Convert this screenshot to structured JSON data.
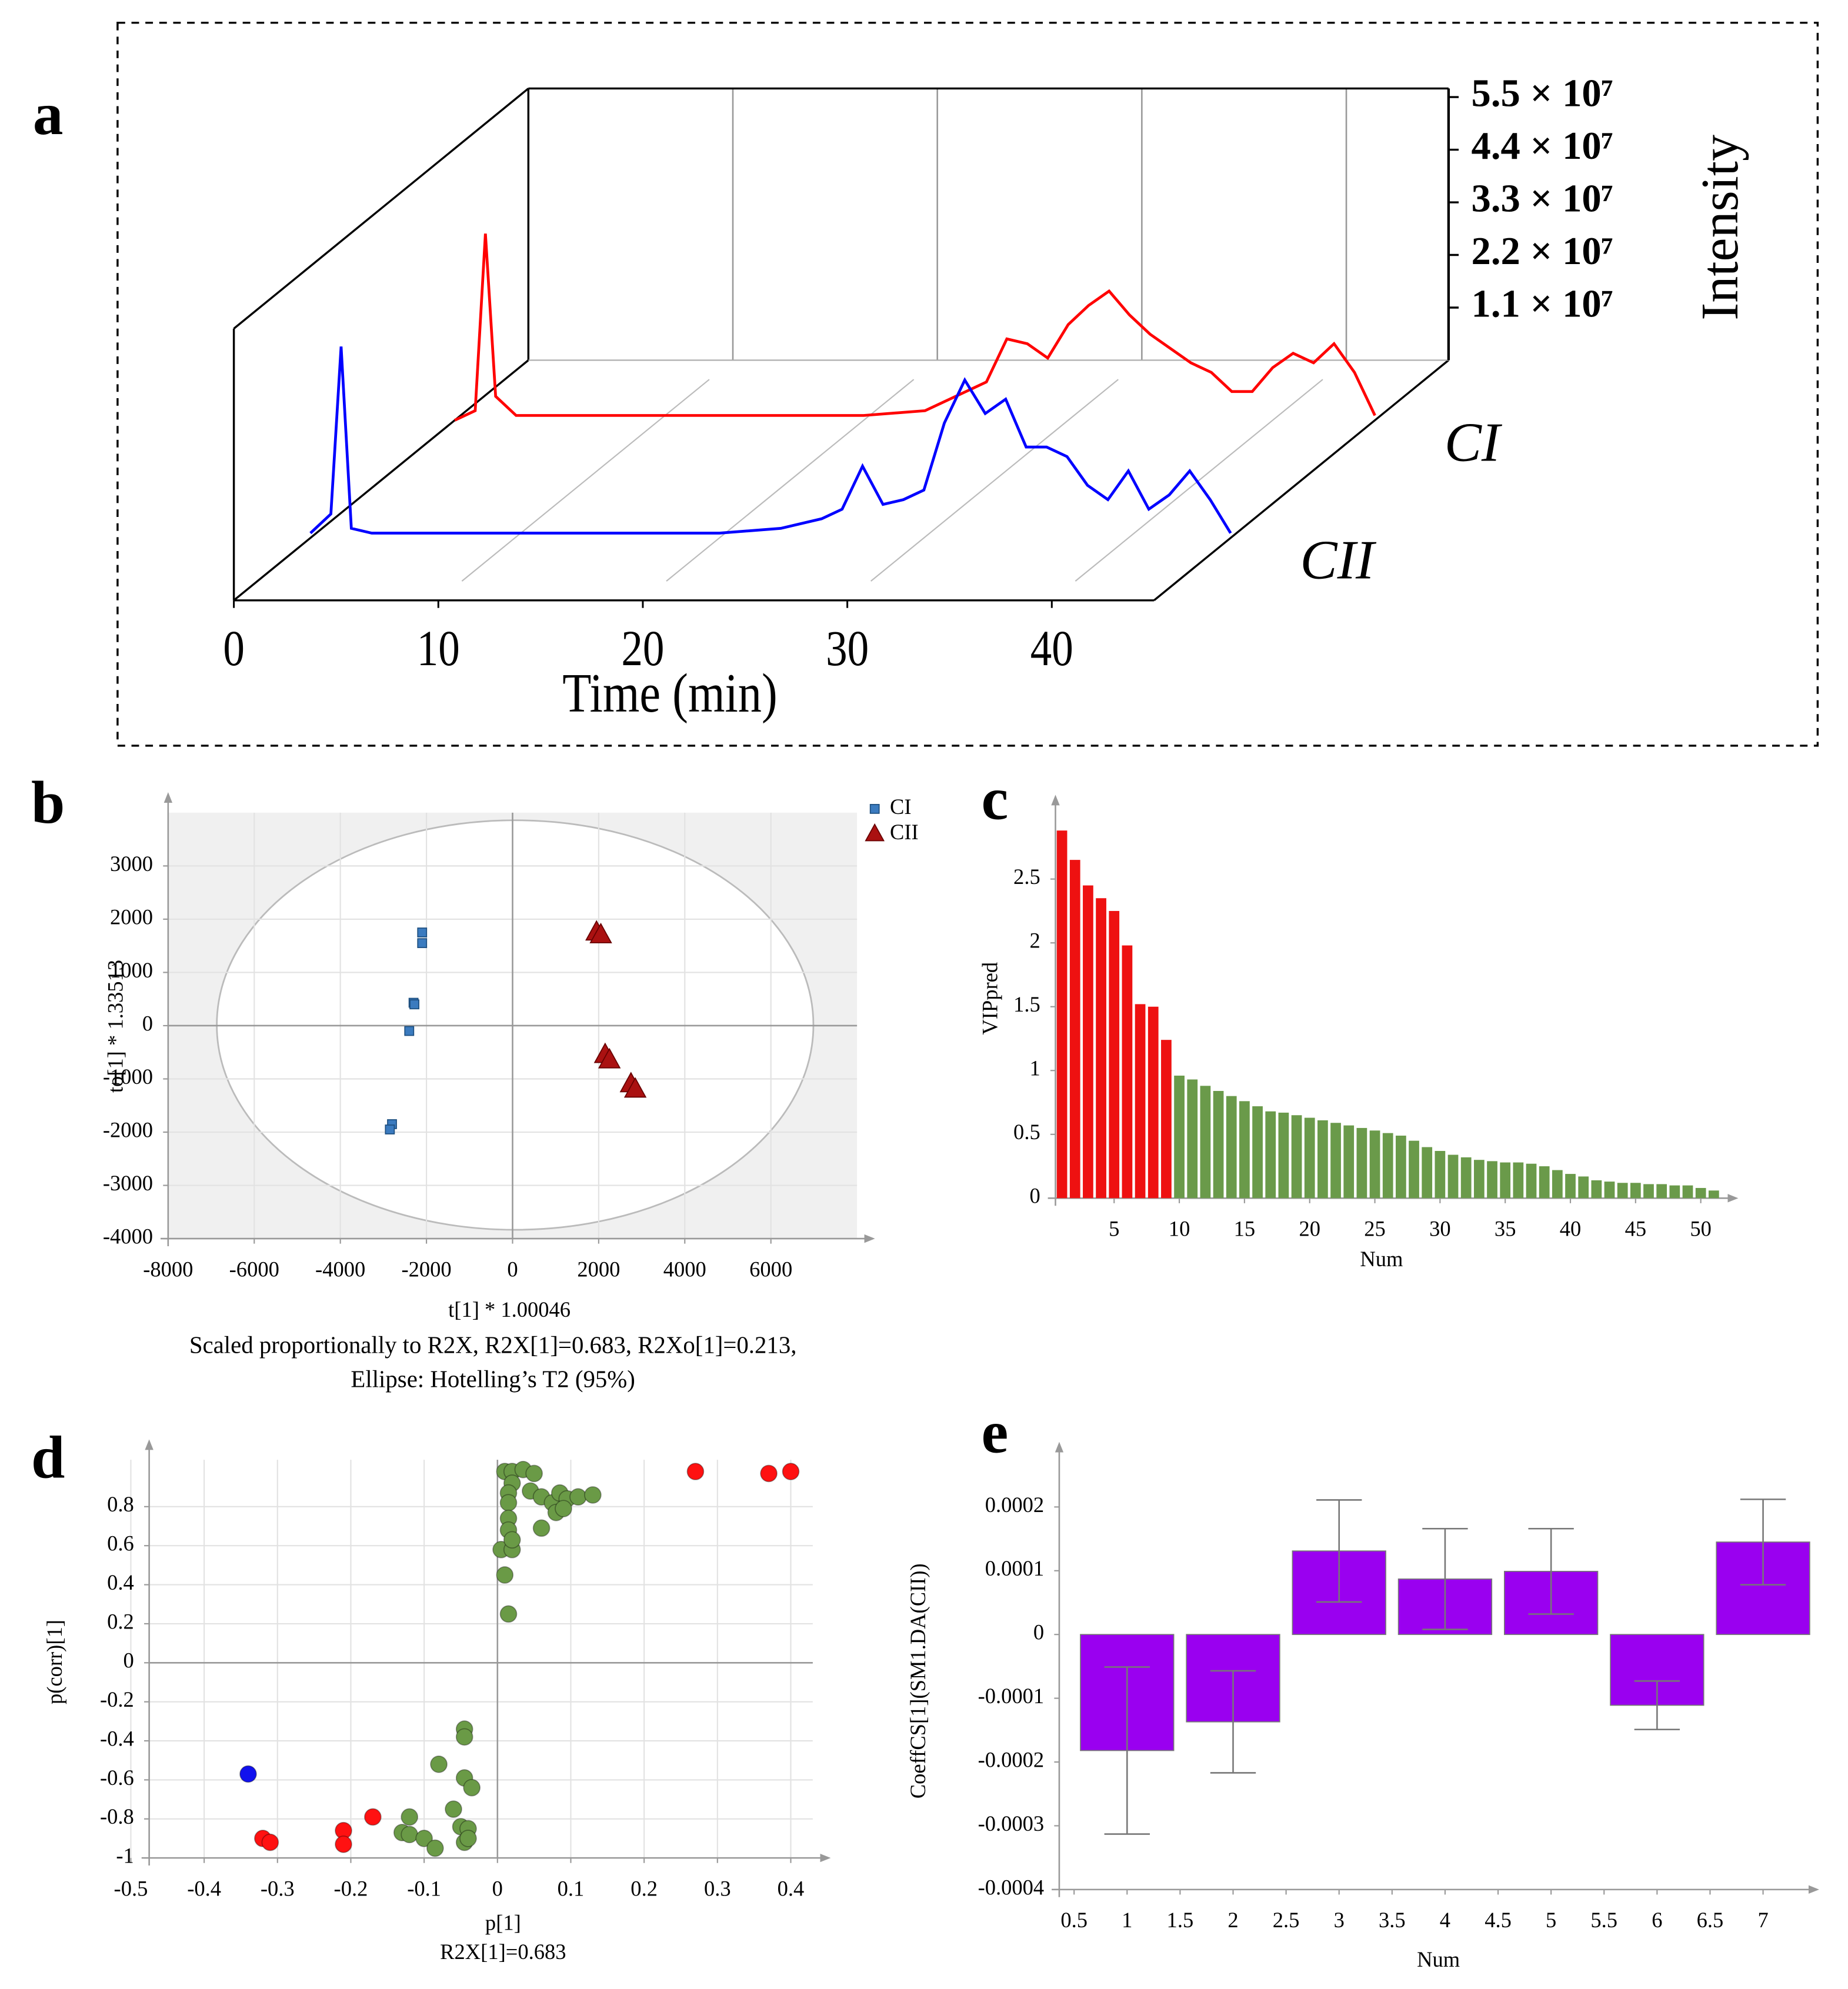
{
  "chart_data": [
    {
      "type": "line",
      "panel_label": "a",
      "x_label": "Time (min)",
      "y_label": "Intensity",
      "x": [
        0,
        1,
        1.5,
        2,
        3,
        5,
        10,
        15,
        20,
        23,
        25,
        26,
        27,
        28,
        29,
        30,
        31,
        32,
        33,
        34,
        35,
        36,
        37,
        38,
        39,
        40,
        41,
        42,
        43,
        44,
        45
      ],
      "series": [
        {
          "name": "CI",
          "color": "#ff0000",
          "values": [
            0,
            2000000,
            39000000,
            5000000,
            1000000,
            1000000,
            1000000,
            1000000,
            1000000,
            2000000,
            6000000,
            8000000,
            17000000,
            16000000,
            13000000,
            20000000,
            24000000,
            27000000,
            22000000,
            18000000,
            15000000,
            12000000,
            10000000,
            6000000,
            6000000,
            11000000,
            14000000,
            12000000,
            16000000,
            10000000,
            1000000
          ]
        },
        {
          "name": "CII",
          "color": "#0000ff",
          "values": [
            1000000,
            5000000,
            40000000,
            2000000,
            1000000,
            1000000,
            1000000,
            1000000,
            1000000,
            2000000,
            4000000,
            6000000,
            15000000,
            7000000,
            8000000,
            10000000,
            24000000,
            33000000,
            26000000,
            29000000,
            19000000,
            19000000,
            17000000,
            11000000,
            8000000,
            14000000,
            6000000,
            9000000,
            14000000,
            8000000,
            1000000
          ]
        }
      ],
      "xlim": [
        0,
        45
      ],
      "xticks": [
        0,
        10,
        20,
        30,
        40
      ],
      "ylim": [
        0,
        56800000
      ],
      "yticks": [
        {
          "value": 11000000,
          "label": "1.1 × 10⁷"
        },
        {
          "value": 22000000,
          "label": "2.2 × 10⁷"
        },
        {
          "value": 33000000,
          "label": "3.3 × 10⁷"
        },
        {
          "value": 44000000,
          "label": "4.4 × 10⁷"
        },
        {
          "value": 55000000,
          "label": "5.5 × 10⁷"
        }
      ]
    },
    {
      "type": "scatter",
      "panel_label": "b",
      "x_label": "t[1] * 1.00046",
      "y_label": "to[1] * 1.33513",
      "caption": [
        "Scaled proportionally to R2X, R2X[1]=0.683, R2Xo[1]=0.213,",
        "Ellipse: Hotelling’s T2 (95%)"
      ],
      "series": [
        {
          "name": "CI",
          "color": "#3b7bbf",
          "marker": "square",
          "x": [
            -2100,
            -2100,
            -2300,
            -2280,
            -2400,
            -2800,
            -2850
          ],
          "values": [
            1750,
            1550,
            430,
            400,
            -100,
            -1850,
            -1950
          ]
        },
        {
          "name": "CII",
          "color": "#aa1111",
          "marker": "triangle",
          "x": [
            1950,
            2050,
            2150,
            2250,
            2750,
            2850
          ],
          "values": [
            1750,
            1700,
            -550,
            -650,
            -1100,
            -1200
          ]
        }
      ],
      "xlim": [
        -8000,
        8000
      ],
      "xticks": [
        -8000,
        -6000,
        -4000,
        -2000,
        0,
        2000,
        4000,
        6000
      ],
      "ylim": [
        -4000,
        4000
      ],
      "yticks": [
        -4000,
        -3000,
        -2000,
        -1000,
        0,
        1000,
        2000,
        3000
      ],
      "grid": true,
      "plot_background": "#f0f0f0",
      "legend": "upper right"
    },
    {
      "type": "bar",
      "panel_label": "c",
      "x_label": "Num",
      "y_label": "VIPpred",
      "x": [
        1,
        2,
        3,
        4,
        5,
        6,
        7,
        8,
        9,
        10,
        11,
        12,
        13,
        14,
        15,
        16,
        17,
        18,
        19,
        20,
        21,
        22,
        23,
        24,
        25,
        26,
        27,
        28,
        29,
        30,
        31,
        32,
        33,
        34,
        35,
        36,
        37,
        38,
        39,
        40,
        41,
        42,
        43,
        44,
        45,
        46,
        47,
        48,
        49,
        50,
        51
      ],
      "values": [
        2.88,
        2.65,
        2.45,
        2.35,
        2.25,
        1.98,
        1.52,
        1.5,
        1.24,
        0.96,
        0.93,
        0.88,
        0.84,
        0.8,
        0.76,
        0.72,
        0.68,
        0.67,
        0.65,
        0.63,
        0.61,
        0.59,
        0.57,
        0.55,
        0.53,
        0.51,
        0.49,
        0.45,
        0.4,
        0.37,
        0.34,
        0.32,
        0.3,
        0.29,
        0.28,
        0.28,
        0.27,
        0.25,
        0.22,
        0.19,
        0.17,
        0.14,
        0.13,
        0.12,
        0.12,
        0.11,
        0.11,
        0.1,
        0.1,
        0.08,
        0.06
      ],
      "colors": [
        "#ee1111",
        "#ee1111",
        "#ee1111",
        "#ee1111",
        "#ee1111",
        "#ee1111",
        "#ee1111",
        "#ee1111",
        "#ee1111",
        "#6a9a4a",
        "#6a9a4a",
        "#6a9a4a",
        "#6a9a4a",
        "#6a9a4a",
        "#6a9a4a",
        "#6a9a4a",
        "#6a9a4a",
        "#6a9a4a",
        "#6a9a4a",
        "#6a9a4a",
        "#6a9a4a",
        "#6a9a4a",
        "#6a9a4a",
        "#6a9a4a",
        "#6a9a4a",
        "#6a9a4a",
        "#6a9a4a",
        "#6a9a4a",
        "#6a9a4a",
        "#6a9a4a",
        "#6a9a4a",
        "#6a9a4a",
        "#6a9a4a",
        "#6a9a4a",
        "#6a9a4a",
        "#6a9a4a",
        "#6a9a4a",
        "#6a9a4a",
        "#6a9a4a",
        "#6a9a4a",
        "#6a9a4a",
        "#6a9a4a",
        "#6a9a4a",
        "#6a9a4a",
        "#6a9a4a",
        "#6a9a4a",
        "#6a9a4a",
        "#6a9a4a",
        "#6a9a4a",
        "#6a9a4a",
        "#6a9a4a"
      ],
      "xlim": [
        0.5,
        51.5
      ],
      "xticks": [
        5,
        10,
        15,
        20,
        25,
        30,
        35,
        40,
        45,
        50
      ],
      "ylim": [
        0,
        3
      ],
      "yticks": [
        0,
        0.5,
        1,
        1.5,
        2,
        2.5
      ]
    },
    {
      "type": "scatter",
      "panel_label": "d",
      "x_label": "p[1]",
      "subtitle": "R2X[1]=0.683",
      "y_label": "p(corr)[1]",
      "series": [
        {
          "color": "#6a9a46",
          "marker": "circle",
          "x": [
            0.01,
            0.02,
            0.035,
            0.05,
            0.02,
            0.045,
            0.06,
            0.075,
            0.085,
            0.095,
            0.11,
            0.13,
            0.08,
            0.06,
            0.015,
            0.015,
            0.015,
            0.015,
            0.005,
            0.02,
            0.01,
            0.015,
            0.02,
            0.09,
            -0.045,
            -0.045,
            -0.08,
            -0.045,
            -0.035,
            -0.06,
            -0.12,
            -0.13,
            -0.12,
            -0.1,
            -0.085,
            -0.05,
            -0.04,
            -0.045,
            -0.04
          ],
          "values": [
            0.98,
            0.98,
            0.99,
            0.97,
            0.92,
            0.88,
            0.85,
            0.82,
            0.87,
            0.84,
            0.85,
            0.86,
            0.77,
            0.69,
            0.87,
            0.82,
            0.74,
            0.68,
            0.58,
            0.58,
            0.45,
            0.25,
            0.63,
            0.79,
            -0.34,
            -0.38,
            -0.52,
            -0.59,
            -0.64,
            -0.75,
            -0.79,
            -0.87,
            -0.88,
            -0.9,
            -0.95,
            -0.84,
            -0.85,
            -0.92,
            -0.9
          ]
        },
        {
          "color": "#ff1111",
          "marker": "circle",
          "x": [
            -0.32,
            -0.31,
            -0.21,
            -0.21,
            -0.17,
            0.27,
            0.37,
            0.4
          ],
          "values": [
            -0.9,
            -0.92,
            -0.86,
            -0.93,
            -0.79,
            0.98,
            0.97,
            0.98
          ]
        },
        {
          "color": "#1111ee",
          "marker": "circle",
          "x": [
            -0.34
          ],
          "values": [
            -0.57
          ]
        }
      ],
      "xlim": [
        -0.475,
        0.43
      ],
      "xticks": [
        -0.5,
        -0.4,
        -0.3,
        -0.2,
        -0.1,
        0,
        0.1,
        0.2,
        0.3,
        0.4
      ],
      "ylim": [
        -1,
        1.04
      ],
      "yticks": [
        -1,
        -0.8,
        -0.6,
        -0.4,
        -0.2,
        0,
        0.2,
        0.4,
        0.6,
        0.8
      ],
      "grid": true
    },
    {
      "type": "bar",
      "panel_label": "e",
      "x_label": "Num",
      "y_label": "CoeffCS[1](SM1.DA(CII))",
      "x": [
        1,
        2,
        3,
        4,
        5,
        6,
        7
      ],
      "values": [
        -0.000182,
        -0.000137,
        0.000131,
        8.7e-05,
        9.9e-05,
        -0.000111,
        0.000145
      ],
      "errors": [
        0.000131,
        8e-05,
        8e-05,
        7.9e-05,
        6.7e-05,
        3.8e-05,
        6.7e-05
      ],
      "color": "#9a00f0",
      "xlim": [
        0.36,
        7.36
      ],
      "xticks": [
        0.5,
        1,
        1.5,
        2,
        2.5,
        3,
        3.5,
        4,
        4.5,
        5,
        5.5,
        6,
        6.5,
        7
      ],
      "ylim": [
        -0.0004,
        0.00027
      ],
      "yticks": [
        -0.0004,
        -0.0003,
        -0.0002,
        -0.0001,
        0,
        0.0001,
        0.0002
      ]
    }
  ]
}
